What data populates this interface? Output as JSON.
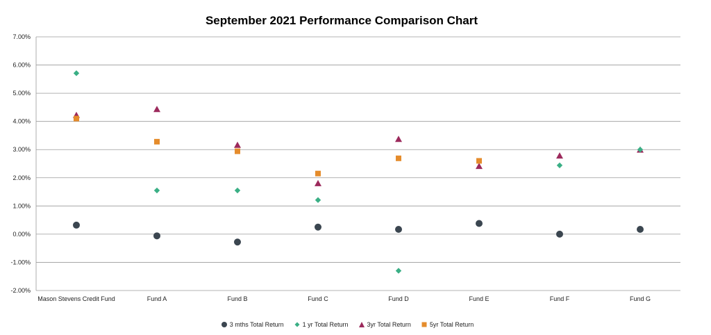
{
  "chart_data": {
    "type": "scatter",
    "title": "September 2021 Performance Comparison Chart",
    "categories": [
      "Mason Stevens Credit Fund",
      "Fund A",
      "Fund B",
      "Fund C",
      "Fund D",
      "Fund E",
      "Fund F",
      "Fund G"
    ],
    "ylim": [
      -2.0,
      7.0
    ],
    "y_ticks": [
      "-2.00%",
      "-1.00%",
      "0.00%",
      "1.00%",
      "2.00%",
      "3.00%",
      "4.00%",
      "5.00%",
      "6.00%",
      "7.00%"
    ],
    "grid": true,
    "legend_position": "bottom",
    "series": [
      {
        "name": "3 mths Total Return",
        "marker": "circle",
        "color": "#3b4650",
        "values": [
          0.32,
          -0.06,
          -0.28,
          0.25,
          0.17,
          0.38,
          0.0,
          0.17
        ]
      },
      {
        "name": "1 yr Total Return",
        "marker": "diamond",
        "color": "#3aaf85",
        "values": [
          5.71,
          1.55,
          1.55,
          1.21,
          -1.3,
          null,
          2.44,
          3.0
        ]
      },
      {
        "name": "3yr Total Return",
        "marker": "triangle",
        "color": "#9c2a5c",
        "values": [
          4.22,
          4.43,
          3.16,
          1.8,
          3.37,
          2.41,
          2.78,
          2.99
        ]
      },
      {
        "name": "5yr Total Return",
        "marker": "square",
        "color": "#e58c2c",
        "values": [
          4.1,
          3.28,
          2.94,
          2.15,
          2.69,
          2.6,
          null,
          null
        ]
      }
    ]
  }
}
